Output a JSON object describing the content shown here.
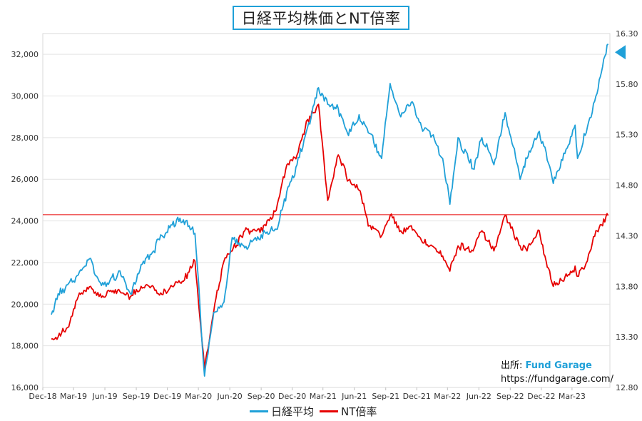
{
  "chart_data": {
    "type": "line",
    "title": "日経平均株価とNT倍率",
    "x_ticks": [
      "Dec-18",
      "Mar-19",
      "Jun-19",
      "Sep-19",
      "Dec-19",
      "Mar-20",
      "Jun-20",
      "Sep-20",
      "Dec-20",
      "Mar-21",
      "Jun-21",
      "Sep-21",
      "Dec-21",
      "Mar-22",
      "Jun-22",
      "Sep-22",
      "Dec-22",
      "Mar-23"
    ],
    "x_range": [
      "Dec-18",
      "May-23"
    ],
    "y_left": {
      "range": [
        16000,
        33000
      ],
      "ticks": [
        "16,000",
        "18,000",
        "20,000",
        "22,000",
        "24,000",
        "26,000",
        "28,000",
        "30,000",
        "32,000"
      ]
    },
    "y_right": {
      "range": [
        12.8,
        16.3
      ],
      "ticks": [
        "12.80",
        "13.30",
        "13.80",
        "14.30",
        "14.80",
        "15.30",
        "15.80",
        "16.30"
      ]
    },
    "series": [
      {
        "name": "日経平均",
        "axis": "left",
        "color": "#1fa0d8",
        "points": [
          [
            "2018-12-26",
            19500
          ],
          [
            "2019-01-15",
            20500
          ],
          [
            "2019-02-15",
            21000
          ],
          [
            "2019-03-15",
            21400
          ],
          [
            "2019-04-20",
            22200
          ],
          [
            "2019-05-15",
            21100
          ],
          [
            "2019-06-15",
            21100
          ],
          [
            "2019-07-15",
            21600
          ],
          [
            "2019-08-15",
            20500
          ],
          [
            "2019-09-15",
            21900
          ],
          [
            "2019-10-15",
            22400
          ],
          [
            "2019-11-15",
            23300
          ],
          [
            "2019-12-15",
            23800
          ],
          [
            "2020-01-17",
            24050
          ],
          [
            "2020-02-20",
            23400
          ],
          [
            "2020-03-19",
            16550
          ],
          [
            "2020-04-15",
            19600
          ],
          [
            "2020-05-15",
            20100
          ],
          [
            "2020-06-08",
            23200
          ],
          [
            "2020-07-15",
            22700
          ],
          [
            "2020-08-15",
            23200
          ],
          [
            "2020-09-15",
            23400
          ],
          [
            "2020-10-15",
            23600
          ],
          [
            "2020-11-15",
            25400
          ],
          [
            "2020-12-15",
            26700
          ],
          [
            "2021-01-15",
            28500
          ],
          [
            "2021-02-16",
            30400
          ],
          [
            "2021-03-15",
            29600
          ],
          [
            "2021-04-15",
            29400
          ],
          [
            "2021-05-15",
            28100
          ],
          [
            "2021-06-15",
            29100
          ],
          [
            "2021-07-15",
            28200
          ],
          [
            "2021-08-20",
            27000
          ],
          [
            "2021-09-14",
            30600
          ],
          [
            "2021-10-15",
            29000
          ],
          [
            "2021-11-15",
            29700
          ],
          [
            "2021-12-15",
            28500
          ],
          [
            "2022-01-15",
            28100
          ],
          [
            "2022-02-15",
            27000
          ],
          [
            "2022-03-08",
            24800
          ],
          [
            "2022-04-01",
            28000
          ],
          [
            "2022-05-15",
            26500
          ],
          [
            "2022-06-10",
            28000
          ],
          [
            "2022-07-15",
            26700
          ],
          [
            "2022-08-17",
            29200
          ],
          [
            "2022-09-30",
            26000
          ],
          [
            "2022-10-20",
            27000
          ],
          [
            "2022-11-25",
            28300
          ],
          [
            "2022-12-15",
            27300
          ],
          [
            "2023-01-05",
            25800
          ],
          [
            "2023-02-15",
            27500
          ],
          [
            "2023-03-10",
            28600
          ],
          [
            "2023-03-17",
            27000
          ],
          [
            "2023-04-15",
            28500
          ],
          [
            "2023-05-10",
            30000
          ],
          [
            "2023-06-15",
            32500
          ]
        ]
      },
      {
        "name": "NT倍率",
        "axis": "right",
        "color": "#e60000",
        "points": [
          [
            "2018-12-26",
            13.28
          ],
          [
            "2019-01-15",
            13.3
          ],
          [
            "2019-02-15",
            13.4
          ],
          [
            "2019-03-15",
            13.7
          ],
          [
            "2019-04-20",
            13.8
          ],
          [
            "2019-05-15",
            13.7
          ],
          [
            "2019-06-15",
            13.75
          ],
          [
            "2019-07-15",
            13.75
          ],
          [
            "2019-08-15",
            13.7
          ],
          [
            "2019-09-15",
            13.8
          ],
          [
            "2019-10-15",
            13.8
          ],
          [
            "2019-11-15",
            13.72
          ],
          [
            "2019-12-15",
            13.8
          ],
          [
            "2020-01-17",
            13.85
          ],
          [
            "2020-02-20",
            14.05
          ],
          [
            "2020-03-19",
            12.98
          ],
          [
            "2020-04-15",
            13.55
          ],
          [
            "2020-05-15",
            14.05
          ],
          [
            "2020-06-08",
            14.15
          ],
          [
            "2020-07-15",
            14.35
          ],
          [
            "2020-08-15",
            14.35
          ],
          [
            "2020-09-15",
            14.4
          ],
          [
            "2020-10-15",
            14.55
          ],
          [
            "2020-11-15",
            15.0
          ],
          [
            "2020-12-15",
            15.1
          ],
          [
            "2021-01-15",
            15.45
          ],
          [
            "2021-02-16",
            15.6
          ],
          [
            "2021-03-15",
            14.65
          ],
          [
            "2021-04-15",
            15.1
          ],
          [
            "2021-05-15",
            14.85
          ],
          [
            "2021-06-15",
            14.75
          ],
          [
            "2021-07-15",
            14.4
          ],
          [
            "2021-08-20",
            14.3
          ],
          [
            "2021-09-14",
            14.5
          ],
          [
            "2021-10-15",
            14.35
          ],
          [
            "2021-11-15",
            14.4
          ],
          [
            "2021-12-15",
            14.25
          ],
          [
            "2022-01-15",
            14.2
          ],
          [
            "2022-02-15",
            14.1
          ],
          [
            "2022-03-08",
            13.95
          ],
          [
            "2022-04-01",
            14.2
          ],
          [
            "2022-05-15",
            14.15
          ],
          [
            "2022-06-10",
            14.35
          ],
          [
            "2022-07-15",
            14.15
          ],
          [
            "2022-08-17",
            14.5
          ],
          [
            "2022-09-30",
            14.2
          ],
          [
            "2022-10-20",
            14.15
          ],
          [
            "2022-11-25",
            14.35
          ],
          [
            "2022-12-15",
            14.05
          ],
          [
            "2023-01-05",
            13.8
          ],
          [
            "2023-02-15",
            13.9
          ],
          [
            "2023-03-10",
            14.0
          ],
          [
            "2023-03-17",
            13.9
          ],
          [
            "2023-04-15",
            14.05
          ],
          [
            "2023-05-10",
            14.35
          ],
          [
            "2023-06-15",
            14.5
          ]
        ]
      }
    ],
    "reference_line": {
      "axis": "left",
      "value": 24300,
      "color": "#e60000"
    },
    "marker": {
      "shape": "triangle-left",
      "color": "#1fa0d8",
      "axis": "left",
      "value": 32100
    },
    "legend": {
      "placement": "bottom",
      "entries": [
        "日経平均",
        "NT倍率"
      ]
    }
  },
  "source": {
    "label": "出所:",
    "brand": "Fund Garage",
    "url": "https://fundgarage.com/"
  }
}
